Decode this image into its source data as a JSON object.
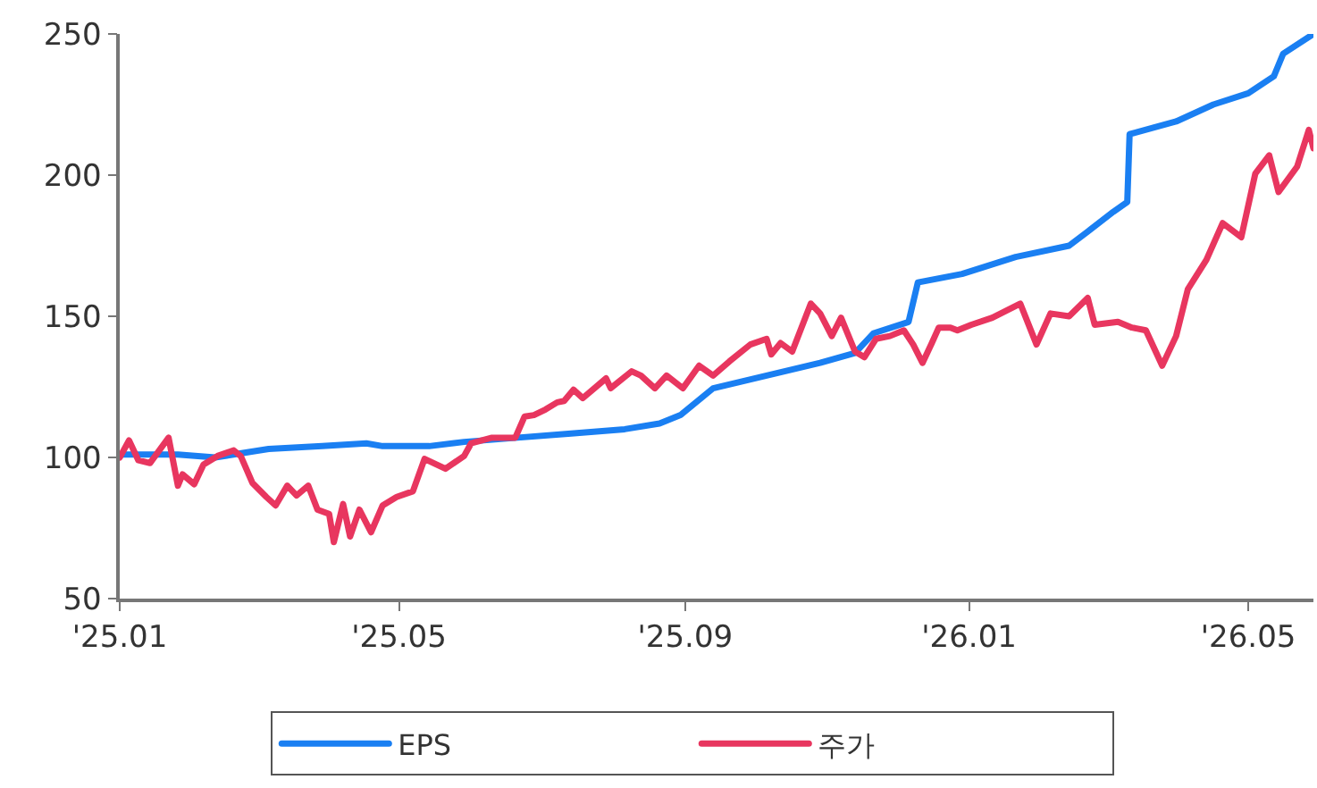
{
  "chart_data": {
    "type": "line",
    "xlim": [
      "2025-01-01",
      "2026-05-29"
    ],
    "ylim": [
      50,
      250
    ],
    "xticks": [
      {
        "value": "2025-01-01",
        "label": "'25.01"
      },
      {
        "value": "2025-05-01",
        "label": "'25.05"
      },
      {
        "value": "2025-09-01",
        "label": "'25.09"
      },
      {
        "value": "2026-01-01",
        "label": "'26.01"
      },
      {
        "value": "2026-05-01",
        "label": "'26.05"
      }
    ],
    "yticks": [
      50,
      100,
      150,
      200,
      250
    ],
    "grid": false,
    "legend": "bottom",
    "marker": "none",
    "line_style": "solid",
    "series": [
      {
        "name": "EPS",
        "color": "#1a7ff2",
        "x": [
          "2025-01-01",
          "2025-01-26",
          "2025-02-11",
          "2025-03-06",
          "2025-03-29",
          "2025-04-17",
          "2025-04-24",
          "2025-05-14",
          "2025-05-29",
          "2025-06-21",
          "2025-07-14",
          "2025-08-06",
          "2025-08-21",
          "2025-08-30",
          "2025-09-13",
          "2025-10-06",
          "2025-10-29",
          "2025-11-13",
          "2025-11-21",
          "2025-12-06",
          "2025-12-10",
          "2025-12-29",
          "2026-01-21",
          "2026-02-13",
          "2026-02-21",
          "2026-03-04",
          "2026-03-10",
          "2026-03-11",
          "2026-03-31",
          "2026-04-16",
          "2026-05-01",
          "2026-05-12",
          "2026-05-16",
          "2026-05-29"
        ],
        "values": [
          101,
          101,
          100,
          103,
          104,
          105,
          104,
          104,
          105.5,
          107,
          108.5,
          110,
          112,
          115,
          124.5,
          129,
          133.5,
          137,
          144,
          148,
          162,
          165,
          171,
          175,
          180,
          187,
          190.5,
          214.5,
          219,
          225,
          229,
          235,
          243,
          250
        ]
      },
      {
        "name": "주가",
        "color": "#e8365f",
        "x": [
          "2025-01-01",
          "2025-01-05",
          "2025-01-09",
          "2025-01-14",
          "2025-01-22",
          "2025-01-26",
          "2025-01-28",
          "2025-02-02",
          "2025-02-06",
          "2025-02-12",
          "2025-02-19",
          "2025-02-22",
          "2025-02-27",
          "2025-03-05",
          "2025-03-09",
          "2025-03-14",
          "2025-03-18",
          "2025-03-23",
          "2025-03-27",
          "2025-04-01",
          "2025-04-03",
          "2025-04-07",
          "2025-04-10",
          "2025-04-14",
          "2025-04-19",
          "2025-04-24",
          "2025-04-30",
          "2025-05-07",
          "2025-05-12",
          "2025-05-21",
          "2025-05-29",
          "2025-06-01",
          "2025-06-10",
          "2025-06-20",
          "2025-06-24",
          "2025-06-28",
          "2025-07-03",
          "2025-07-08",
          "2025-07-11",
          "2025-07-15",
          "2025-07-19",
          "2025-07-29",
          "2025-07-31",
          "2025-08-09",
          "2025-08-13",
          "2025-08-19",
          "2025-08-24",
          "2025-08-31",
          "2025-09-07",
          "2025-09-13",
          "2025-09-20",
          "2025-09-29",
          "2025-10-06",
          "2025-10-08",
          "2025-10-12",
          "2025-10-17",
          "2025-10-25",
          "2025-10-29",
          "2025-11-03",
          "2025-11-07",
          "2025-11-13",
          "2025-11-17",
          "2025-11-22",
          "2025-11-28",
          "2025-12-04",
          "2025-12-08",
          "2025-12-12",
          "2025-12-16",
          "2025-12-19",
          "2025-12-24",
          "2025-12-27",
          "2026-01-02",
          "2026-01-11",
          "2026-01-23",
          "2026-01-30",
          "2026-02-05",
          "2026-02-13",
          "2026-02-21",
          "2026-02-24",
          "2026-03-06",
          "2026-03-12",
          "2026-03-18",
          "2026-03-25",
          "2026-03-31",
          "2026-04-05",
          "2026-04-13",
          "2026-04-20",
          "2026-04-28",
          "2026-05-04",
          "2026-05-10",
          "2026-05-14",
          "2026-05-22",
          "2026-05-27",
          "2026-05-29"
        ],
        "values": [
          100,
          106,
          99,
          98,
          107,
          90,
          94,
          90.5,
          97.5,
          100.5,
          102.5,
          100.5,
          91,
          86,
          83,
          90,
          86.5,
          90,
          81.5,
          80,
          70,
          83.5,
          72,
          81.5,
          73.5,
          83,
          86,
          88,
          99.5,
          96,
          100.5,
          105,
          107,
          107,
          114.5,
          115,
          117,
          119.5,
          120,
          124,
          121,
          128,
          124.5,
          130.5,
          129,
          124.5,
          129,
          124.5,
          132.5,
          129,
          134,
          140,
          142,
          136.5,
          140.5,
          137.5,
          154.5,
          151,
          143,
          149.5,
          137.5,
          135.5,
          142,
          143,
          145,
          140,
          133.5,
          140.5,
          146,
          146,
          145,
          147,
          149.5,
          154.5,
          140,
          151,
          150,
          156.5,
          147,
          148,
          146,
          145,
          132.5,
          143,
          159.5,
          170,
          183,
          178,
          200.5,
          207,
          194,
          203,
          216,
          209.5
        ]
      }
    ]
  }
}
